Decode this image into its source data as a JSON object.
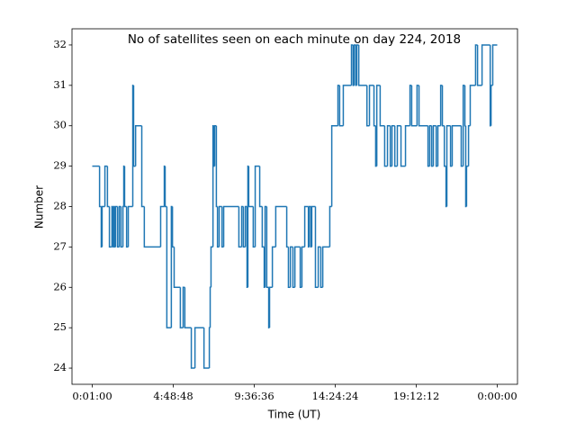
{
  "chart_data": {
    "type": "line",
    "step": "post",
    "title": "No of satellites seen on each minute on day 224, 2018",
    "x_label": "Time (UT)",
    "y_label": "Number",
    "xlim": [
      -4257,
      90717
    ],
    "ylim": [
      23.6,
      32.4
    ],
    "xticks": [
      {
        "value": 60,
        "label": "0:01:00"
      },
      {
        "value": 17328,
        "label": "4:48:48"
      },
      {
        "value": 34596,
        "label": "9:36:36"
      },
      {
        "value": 51864,
        "label": "14:24:24"
      },
      {
        "value": 69132,
        "label": "19:12:12"
      },
      {
        "value": 86400,
        "label": "0:00:00"
      }
    ],
    "yticks": [
      24,
      25,
      26,
      27,
      28,
      29,
      30,
      31,
      32
    ],
    "series": [
      {
        "color": "#1f77b4",
        "x": [
          60,
          1620,
          1980,
          2160,
          2760,
          3300,
          3720,
          4260,
          4500,
          4680,
          4860,
          5040,
          5460,
          5820,
          6180,
          6600,
          6780,
          6960,
          7380,
          7740,
          8700,
          8880,
          9300,
          10620,
          11160,
          14640,
          15420,
          15600,
          15960,
          16920,
          17160,
          17520,
          18840,
          19440,
          19800,
          21180,
          21960,
          23880,
          25020,
          25200,
          25380,
          25800,
          25980,
          26160,
          26520,
          26760,
          27120,
          27720,
          28080,
          31320,
          31920,
          32280,
          32700,
          33060,
          33240,
          33420,
          34380,
          34800,
          35760,
          36300,
          36720,
          36900,
          37260,
          37680,
          37860,
          38460,
          39180,
          41520,
          41880,
          42300,
          42840,
          43260,
          44400,
          44760,
          45360,
          46140,
          46320,
          46680,
          46860,
          47640,
          48240,
          48780,
          49200,
          50700,
          51120,
          52440,
          52800,
          53580,
          55320,
          55680,
          55920,
          56280,
          56460,
          56880,
          58620,
          59160,
          60120,
          60480,
          60720,
          61440,
          62400,
          63000,
          63600,
          63960,
          64560,
          65100,
          65880,
          66840,
          67800,
          68160,
          69300,
          69720,
          71640,
          72000,
          72420,
          72780,
          73380,
          73740,
          74340,
          74700,
          75120,
          75480,
          75660,
          76440,
          76800,
          78720,
          79140,
          79500,
          79680,
          79860,
          80280,
          80640,
          81780,
          82200,
          83160,
          84900,
          85080,
          85440,
          86400
        ],
        "values": [
          29,
          28,
          27,
          28,
          29,
          28,
          27,
          28,
          27,
          28,
          27,
          28,
          27,
          28,
          27,
          28,
          29,
          28,
          27,
          28,
          31,
          29,
          30,
          28,
          27,
          28,
          29,
          28,
          25,
          28,
          27,
          26,
          25,
          26,
          25,
          24,
          25,
          24,
          25,
          26,
          27,
          30,
          29,
          30,
          28,
          27,
          28,
          27,
          28,
          27,
          28,
          27,
          28,
          26,
          29,
          28,
          27,
          29,
          28,
          27,
          26,
          28,
          26,
          25,
          26,
          27,
          28,
          27,
          26,
          27,
          26,
          27,
          26,
          27,
          28,
          27,
          28,
          27,
          28,
          26,
          27,
          26,
          27,
          28,
          30,
          31,
          30,
          31,
          32,
          31,
          32,
          31,
          32,
          31,
          30,
          31,
          30,
          29,
          31,
          30,
          29,
          30,
          29,
          30,
          29,
          30,
          29,
          30,
          31,
          30,
          31,
          30,
          29,
          30,
          29,
          30,
          29,
          30,
          31,
          30,
          29,
          28,
          30,
          29,
          30,
          29,
          31,
          30,
          28,
          29,
          30,
          31,
          32,
          31,
          32,
          30,
          31,
          32,
          32
        ]
      }
    ]
  }
}
